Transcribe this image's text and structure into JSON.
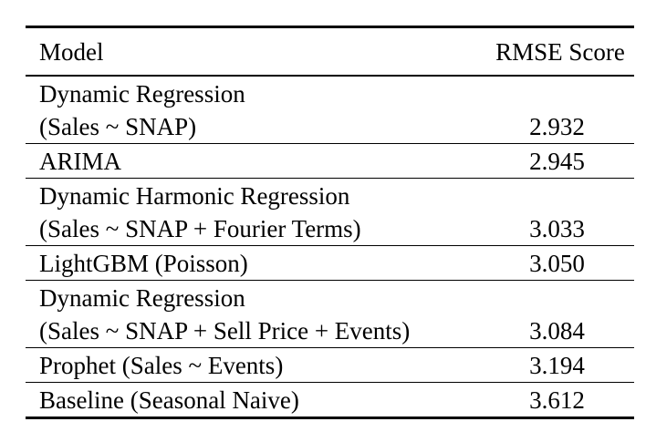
{
  "table": {
    "headers": {
      "model": "Model",
      "score": "RMSE Score"
    },
    "rows": [
      {
        "model_line1": "Dynamic Regression",
        "model_line2": "(Sales ~ SNAP)",
        "score": "2.932"
      },
      {
        "model_line1": "ARIMA",
        "model_line2": "",
        "score": "2.945"
      },
      {
        "model_line1": "Dynamic Harmonic Regression",
        "model_line2": "(Sales ~ SNAP + Fourier Terms)",
        "score": "3.033"
      },
      {
        "model_line1": "LightGBM (Poisson)",
        "model_line2": "",
        "score": "3.050"
      },
      {
        "model_line1": "Dynamic Regression",
        "model_line2": "(Sales ~ SNAP + Sell Price + Events)",
        "score": "3.084"
      },
      {
        "model_line1": "Prophet (Sales ~ Events)",
        "model_line2": "",
        "score": "3.194"
      },
      {
        "model_line1": "Baseline (Seasonal Naive)",
        "model_line2": "",
        "score": "3.612"
      }
    ]
  }
}
